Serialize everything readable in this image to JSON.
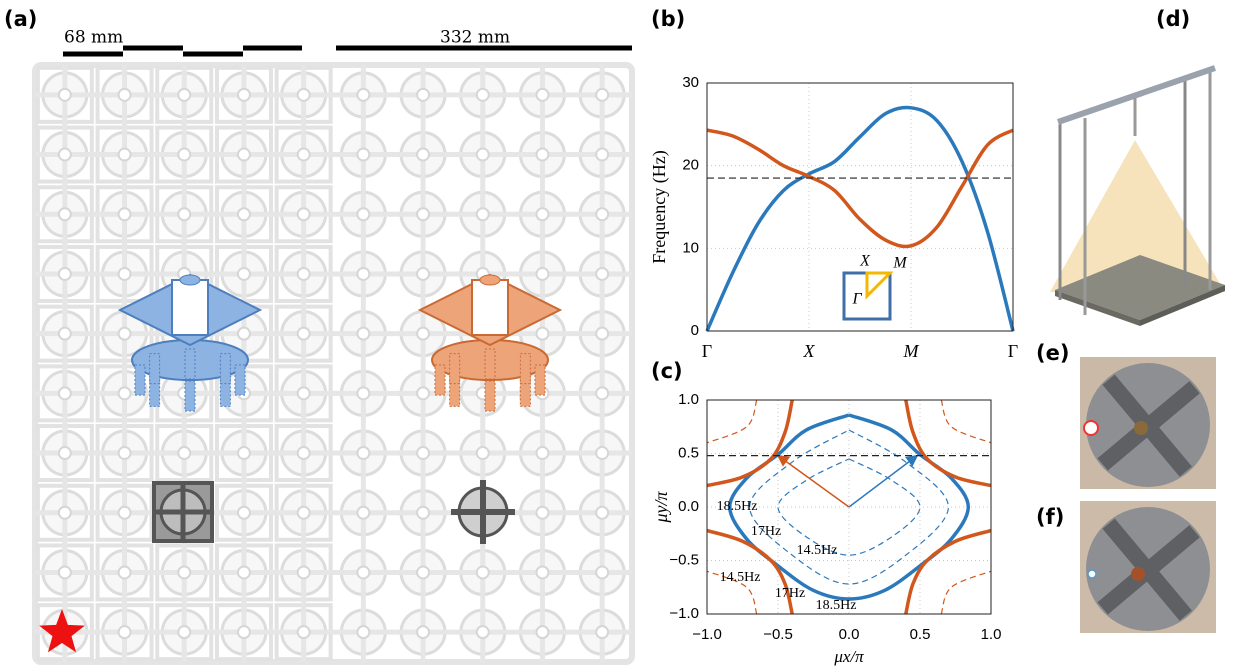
{
  "figure": {
    "panel_labels": [
      "(a)",
      "(b)",
      "(c)",
      "(d)",
      "(e)",
      "(f)"
    ],
    "scale_bars": [
      "68 mm",
      "332 mm"
    ]
  },
  "chart_data": [
    {
      "type": "line",
      "ylabel": "Frequency (Hz)",
      "xlim": [
        0,
        3
      ],
      "ylim": [
        0,
        30
      ],
      "xticks": [
        {
          "value": 0,
          "label": "Γ"
        },
        {
          "value": 1,
          "label": "X"
        },
        {
          "value": 2,
          "label": "M"
        },
        {
          "value": 3,
          "label": "Γ"
        }
      ],
      "yticks": [
        0,
        10,
        20,
        30
      ],
      "grid": true,
      "hline": 18.5,
      "inset_labels": [
        "X",
        "M",
        "Γ"
      ],
      "series": [
        {
          "color": "#2b79bd",
          "x": [
            0,
            0.25,
            0.5,
            0.75,
            1,
            1.25,
            1.5,
            1.75,
            2,
            2.25,
            2.5,
            2.75,
            3
          ],
          "values": [
            0,
            7,
            13,
            17,
            19,
            20.5,
            23.5,
            26.3,
            27,
            25.5,
            20.5,
            12,
            0
          ]
        },
        {
          "color": "#d2571c",
          "x": [
            0,
            0.25,
            0.5,
            0.75,
            1,
            1.25,
            1.5,
            1.75,
            2,
            2.25,
            2.5,
            2.75,
            3
          ],
          "values": [
            24.3,
            23.6,
            22,
            20,
            18.7,
            17,
            13.5,
            11,
            10.3,
            12.5,
            17.5,
            22.5,
            24.3
          ]
        }
      ]
    },
    {
      "type": "contour",
      "xlabel": "μx/π",
      "ylabel": "μy/π",
      "xlim": [
        -1,
        1
      ],
      "ylim": [
        -1,
        1
      ],
      "xticks": [
        {
          "value": -1,
          "label": "−1.0"
        },
        {
          "value": -0.5,
          "label": "−0.5"
        },
        {
          "value": 0,
          "label": "0.0"
        },
        {
          "value": 0.5,
          "label": "0.5"
        },
        {
          "value": 1,
          "label": "1.0"
        }
      ],
      "yticks": [
        {
          "value": -1,
          "label": "−1.0"
        },
        {
          "value": -0.5,
          "label": "−0.5"
        },
        {
          "value": 0,
          "label": "0.0"
        },
        {
          "value": 0.5,
          "label": "0.5"
        },
        {
          "value": 1,
          "label": "1.0"
        }
      ],
      "grid": true,
      "hline": 0.48,
      "arrows": [
        {
          "color": "#d2571c",
          "x": -0.5,
          "y": 0.48
        },
        {
          "color": "#2b79bd",
          "x": 0.48,
          "y": 0.48
        }
      ],
      "contour_labels": [
        "18.5Hz",
        "17Hz",
        "14.5Hz",
        "14.5Hz",
        "17Hz",
        "18.5Hz"
      ],
      "series": [
        {
          "color": "#2b79bd",
          "dash": false,
          "x": [
            0,
            0.3,
            0.5,
            0.72,
            0.84,
            0.72,
            0.5,
            0.25,
            0,
            -0.25,
            -0.5,
            -0.72,
            -0.84,
            -0.72,
            -0.5,
            -0.3,
            0
          ],
          "values": [
            0.86,
            0.72,
            0.49,
            0.27,
            0,
            -0.3,
            -0.55,
            -0.78,
            -0.86,
            -0.78,
            -0.55,
            -0.3,
            0,
            0.27,
            0.49,
            0.72,
            0.86
          ]
        },
        {
          "color": "#2b79bd",
          "dash": true,
          "x": [
            0,
            0.4,
            0.7,
            0.4,
            0,
            -0.4,
            -0.7,
            -0.4,
            0
          ],
          "values": [
            0.72,
            0.42,
            0,
            -0.45,
            -0.72,
            -0.45,
            0,
            0.42,
            0.72
          ]
        },
        {
          "color": "#2b79bd",
          "dash": true,
          "x": [
            0,
            0.3,
            0.5,
            0.3,
            0,
            -0.3,
            -0.5,
            -0.3,
            0
          ],
          "values": [
            0.45,
            0.25,
            0,
            -0.28,
            -0.45,
            -0.28,
            0,
            0.25,
            0.45
          ]
        },
        {
          "color": "#d2571c",
          "dash": false,
          "x": [
            -0.4,
            -0.45,
            -0.55,
            -0.75,
            -1
          ],
          "values": [
            1,
            0.7,
            0.45,
            0.28,
            0.2
          ]
        },
        {
          "color": "#d2571c",
          "dash": false,
          "x": [
            0.4,
            0.45,
            0.55,
            0.75,
            1
          ],
          "values": [
            1,
            0.7,
            0.45,
            0.28,
            0.2
          ]
        },
        {
          "color": "#d2571c",
          "dash": false,
          "x": [
            -0.4,
            -0.45,
            -0.55,
            -0.75,
            -1
          ],
          "values": [
            -1,
            -0.72,
            -0.5,
            -0.32,
            -0.22
          ]
        },
        {
          "color": "#d2571c",
          "dash": false,
          "x": [
            0.4,
            0.45,
            0.55,
            0.75,
            1
          ],
          "values": [
            -1,
            -0.72,
            -0.5,
            -0.32,
            -0.22
          ]
        },
        {
          "color": "#d2571c",
          "dash": true,
          "x": [
            -0.65,
            -0.72,
            -1
          ],
          "values": [
            1,
            0.75,
            0.6
          ]
        },
        {
          "color": "#d2571c",
          "dash": true,
          "x": [
            0.65,
            0.72,
            1
          ],
          "values": [
            1,
            0.75,
            0.6
          ]
        },
        {
          "color": "#d2571c",
          "dash": true,
          "x": [
            -0.65,
            -0.72,
            -1
          ],
          "values": [
            -1,
            -0.75,
            -0.6
          ]
        },
        {
          "color": "#d2571c",
          "dash": true,
          "x": [
            0.65,
            0.72,
            1
          ],
          "values": [
            -1,
            -0.75,
            -0.6
          ]
        }
      ]
    }
  ]
}
